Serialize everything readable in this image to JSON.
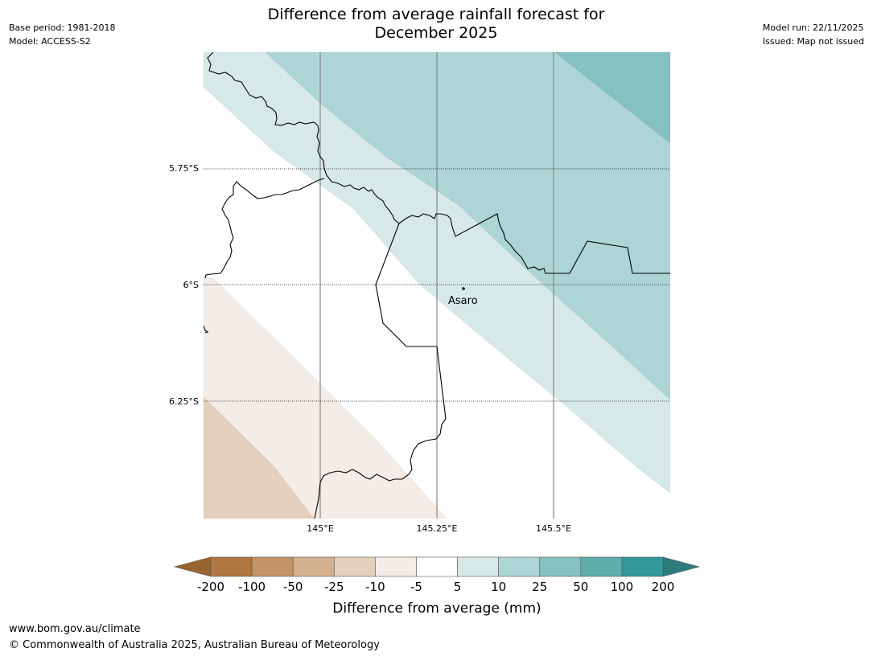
{
  "header": {
    "title_line1": "Difference from average rainfall forecast for",
    "title_line2": "December 2025",
    "base_period": "Base period: 1981-2018",
    "model": "Model: ACCESS-S2",
    "model_run": "Model run: 22/11/2025",
    "issued": "Issued: Map not issued"
  },
  "map": {
    "lat_labels": [
      "5.75°S",
      "6°S",
      "6.25°S"
    ],
    "lon_labels": [
      "145°E",
      "145.25°E",
      "145.5°E"
    ],
    "place": {
      "name": "Asaro"
    }
  },
  "colorbar": {
    "tick_labels": [
      "-200",
      "-100",
      "-50",
      "-25",
      "-10",
      "-5",
      "5",
      "10",
      "25",
      "50",
      "100",
      "200"
    ],
    "bin_colors": [
      "#b07840",
      "#c49468",
      "#d4b08e",
      "#e4d0bc",
      "#f4ece6",
      "#ffffff",
      "#d6e9e8",
      "#add5d5",
      "#85c1c0",
      "#5eaeac",
      "#33999a"
    ],
    "under_color": "#9a6432",
    "over_color": "#2c7c7c",
    "label": "Difference from average (mm)"
  },
  "footer": {
    "url": "www.bom.gov.au/climate",
    "copyright": "© Commonwealth of Australia 2025, Australian Bureau of Meteorology"
  }
}
